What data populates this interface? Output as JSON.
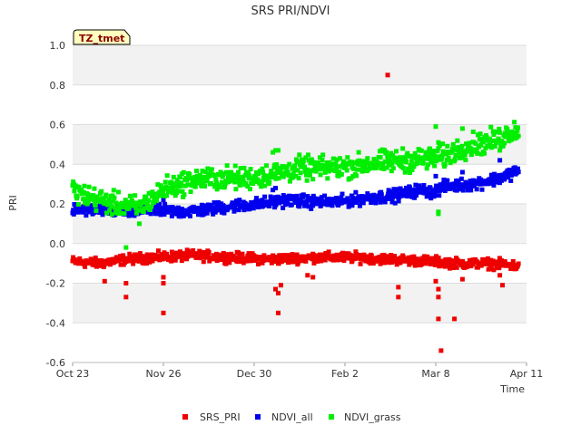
{
  "chart_data": {
    "type": "scatter",
    "title": "SRS PRI/NDVI",
    "xlabel": "Time",
    "ylabel": "PRI",
    "ylim": [
      -0.6,
      1.0
    ],
    "yticks": [
      "1.0",
      "0.8",
      "0.6",
      "0.4",
      "0.2",
      "0.0",
      "-0.2",
      "-0.4",
      "-0.6"
    ],
    "xlim_days": [
      0,
      170
    ],
    "xticks": [
      {
        "label": "Oct 23",
        "day": 0
      },
      {
        "label": "Nov 26",
        "day": 34
      },
      {
        "label": "Dec 30",
        "day": 68
      },
      {
        "label": "Feb 2",
        "day": 102
      },
      {
        "label": "Mar 8",
        "day": 136
      },
      {
        "label": "Apr 11",
        "day": 170
      }
    ],
    "site_label": "TZ_tmet",
    "legend": [
      "SRS_PRI",
      "NDVI_all",
      "NDVI_grass"
    ],
    "series": [
      {
        "name": "SRS_PRI",
        "color": "#ee0000",
        "trend": [
          [
            0,
            -0.09
          ],
          [
            10,
            -0.1
          ],
          [
            20,
            -0.08
          ],
          [
            30,
            -0.07
          ],
          [
            45,
            -0.06
          ],
          [
            60,
            -0.07
          ],
          [
            75,
            -0.08
          ],
          [
            90,
            -0.07
          ],
          [
            105,
            -0.07
          ],
          [
            120,
            -0.08
          ],
          [
            135,
            -0.09
          ],
          [
            145,
            -0.1
          ],
          [
            155,
            -0.1
          ],
          [
            165,
            -0.11
          ],
          [
            167,
            -0.12
          ]
        ],
        "spread": 0.012,
        "outliers": [
          [
            12,
            -0.19
          ],
          [
            20,
            -0.27
          ],
          [
            20,
            -0.2
          ],
          [
            34,
            -0.2
          ],
          [
            34,
            -0.17
          ],
          [
            34,
            -0.35
          ],
          [
            76,
            -0.23
          ],
          [
            77,
            -0.25
          ],
          [
            77,
            -0.35
          ],
          [
            78,
            -0.21
          ],
          [
            88,
            -0.16
          ],
          [
            90,
            -0.17
          ],
          [
            118,
            0.85
          ],
          [
            122,
            -0.27
          ],
          [
            122,
            -0.22
          ],
          [
            136,
            -0.19
          ],
          [
            137,
            -0.23
          ],
          [
            137,
            -0.27
          ],
          [
            137,
            -0.38
          ],
          [
            138,
            -0.54
          ],
          [
            143,
            -0.38
          ],
          [
            146,
            -0.18
          ],
          [
            160,
            -0.16
          ],
          [
            161,
            -0.21
          ]
        ]
      },
      {
        "name": "NDVI_all",
        "color": "#0000ee",
        "trend": [
          [
            0,
            0.17
          ],
          [
            10,
            0.17
          ],
          [
            20,
            0.16
          ],
          [
            30,
            0.17
          ],
          [
            40,
            0.16
          ],
          [
            50,
            0.17
          ],
          [
            60,
            0.19
          ],
          [
            70,
            0.2
          ],
          [
            80,
            0.22
          ],
          [
            90,
            0.21
          ],
          [
            100,
            0.21
          ],
          [
            110,
            0.23
          ],
          [
            120,
            0.24
          ],
          [
            130,
            0.27
          ],
          [
            135,
            0.26
          ],
          [
            140,
            0.29
          ],
          [
            150,
            0.3
          ],
          [
            160,
            0.33
          ],
          [
            165,
            0.36
          ],
          [
            167,
            0.37
          ]
        ],
        "spread": 0.015,
        "outliers": [
          [
            34,
            0.22
          ],
          [
            75,
            0.27
          ],
          [
            76,
            0.28
          ],
          [
            136,
            0.34
          ],
          [
            146,
            0.36
          ],
          [
            160,
            0.42
          ]
        ]
      },
      {
        "name": "NDVI_grass",
        "color": "#00ee00",
        "trend": [
          [
            0,
            0.27
          ],
          [
            5,
            0.24
          ],
          [
            15,
            0.2
          ],
          [
            25,
            0.18
          ],
          [
            35,
            0.28
          ],
          [
            45,
            0.32
          ],
          [
            55,
            0.33
          ],
          [
            65,
            0.33
          ],
          [
            75,
            0.35
          ],
          [
            85,
            0.38
          ],
          [
            95,
            0.38
          ],
          [
            105,
            0.39
          ],
          [
            115,
            0.41
          ],
          [
            125,
            0.42
          ],
          [
            135,
            0.43
          ],
          [
            140,
            0.44
          ],
          [
            145,
            0.48
          ],
          [
            150,
            0.5
          ],
          [
            155,
            0.51
          ],
          [
            160,
            0.53
          ],
          [
            165,
            0.57
          ],
          [
            167,
            0.58
          ]
        ],
        "spread": 0.028,
        "outliers": [
          [
            20,
            -0.02
          ],
          [
            25,
            0.1
          ],
          [
            75,
            0.46
          ],
          [
            76,
            0.47
          ],
          [
            77,
            0.47
          ],
          [
            130,
            0.47
          ],
          [
            136,
            0.59
          ],
          [
            137,
            0.51
          ],
          [
            137,
            0.48
          ],
          [
            137,
            0.16
          ],
          [
            137,
            0.15
          ],
          [
            146,
            0.58
          ],
          [
            160,
            0.47
          ]
        ]
      }
    ]
  }
}
